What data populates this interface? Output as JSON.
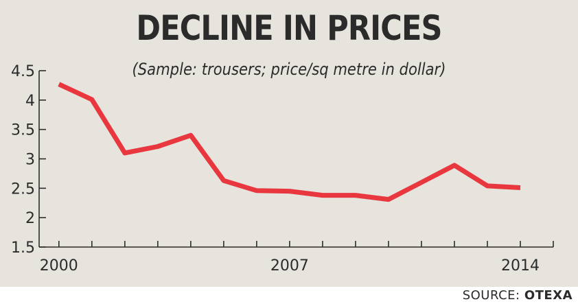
{
  "chart_data": {
    "type": "line",
    "title": "DECLINE IN PRICES",
    "subtitle": "(Sample: trousers; price/sq metre in dollar)",
    "xlabel": "",
    "ylabel": "",
    "x": [
      2000,
      2001,
      2002,
      2003,
      2004,
      2005,
      2006,
      2007,
      2008,
      2009,
      2010,
      2011,
      2012,
      2013,
      2014
    ],
    "xlim": [
      1999.4,
      2015
    ],
    "x_tick_labels": [
      "2000",
      "2007",
      "2014"
    ],
    "x_tick_label_values": [
      2000,
      2007,
      2014
    ],
    "ylim": [
      1.5,
      4.5
    ],
    "y_ticks": [
      "1.5",
      "2",
      "2.5",
      "3",
      "3.5",
      "4",
      "4.5"
    ],
    "grid": false,
    "series": [
      {
        "values": [
          4.27,
          4.01,
          3.1,
          3.21,
          3.4,
          2.63,
          2.46,
          2.45,
          2.38,
          2.38,
          2.31,
          2.6,
          2.89,
          2.54,
          2.51
        ],
        "color": "#e8373e"
      }
    ]
  },
  "source": {
    "label": "SOURCE:",
    "name": "OTEXA"
  },
  "colors": {
    "background": "#e6e4dc",
    "line": "#e8373e",
    "text": "#2b2b2b"
  }
}
